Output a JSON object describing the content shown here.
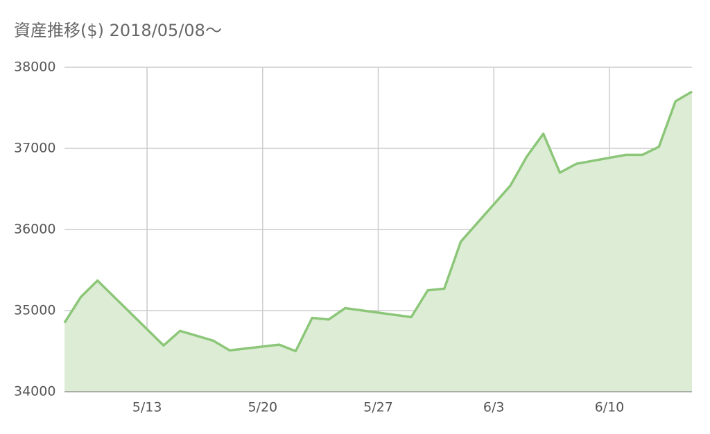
{
  "chart_data": {
    "type": "area",
    "title": "資産推移($) 2018/05/08〜",
    "x": [
      "5/8",
      "5/9",
      "5/10",
      "5/14",
      "5/15",
      "5/17",
      "5/18",
      "5/21",
      "5/22",
      "5/23",
      "5/24",
      "5/25",
      "5/29",
      "5/30",
      "5/31",
      "6/1",
      "6/4",
      "6/5",
      "6/6",
      "6/7",
      "6/8",
      "6/11",
      "6/12",
      "6/13",
      "6/14",
      "6/15"
    ],
    "values": [
      34850,
      35170,
      35370,
      34570,
      34750,
      34630,
      34510,
      34580,
      34500,
      34910,
      34890,
      35030,
      34920,
      35250,
      35270,
      35850,
      36540,
      36900,
      37180,
      36700,
      36810,
      36920,
      36920,
      37020,
      37580,
      37700
    ],
    "color": "#8cc679",
    "fill": "#ddedd5",
    "xlim": [
      "5/8",
      "6/15"
    ],
    "xticks": [
      "5/13",
      "5/20",
      "5/27",
      "6/3",
      "6/10"
    ],
    "ylim": [
      34000,
      38000
    ],
    "yticks": [
      34000,
      35000,
      36000,
      37000,
      38000
    ],
    "grid": true
  }
}
